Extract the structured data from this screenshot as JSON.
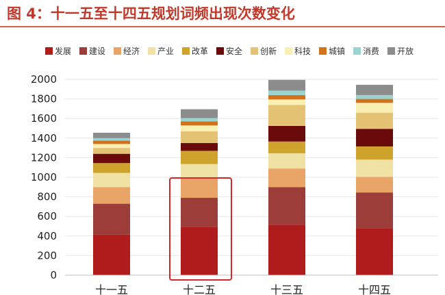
{
  "header": {
    "title": "图 4：十一五至十四五规划词频出现次数变化"
  },
  "chart_data": {
    "type": "bar",
    "stacked": true,
    "categories": [
      "十一五",
      "十二五",
      "十三五",
      "十四五"
    ],
    "series": [
      {
        "name": "发展",
        "color": "#b01c1c",
        "values": [
          415,
          495,
          515,
          480
        ]
      },
      {
        "name": "建设",
        "color": "#9c3d3a",
        "values": [
          315,
          295,
          385,
          365
        ]
      },
      {
        "name": "经济",
        "color": "#e9a467",
        "values": [
          170,
          200,
          190,
          160
        ]
      },
      {
        "name": "产业",
        "color": "#f0e1a4",
        "values": [
          145,
          145,
          155,
          175
        ]
      },
      {
        "name": "改革",
        "color": "#cfa42c",
        "values": [
          100,
          135,
          120,
          135
        ]
      },
      {
        "name": "安全",
        "color": "#6b0a0a",
        "values": [
          95,
          80,
          160,
          180
        ]
      },
      {
        "name": "创新",
        "color": "#e5c374",
        "values": [
          60,
          120,
          215,
          165
        ]
      },
      {
        "name": "科技",
        "color": "#fbf0b4",
        "values": [
          40,
          60,
          55,
          100
        ]
      },
      {
        "name": "城镇",
        "color": "#d2731c",
        "values": [
          35,
          40,
          45,
          40
        ]
      },
      {
        "name": "消费",
        "color": "#9bd3d0",
        "values": [
          25,
          35,
          45,
          40
        ]
      },
      {
        "name": "开放",
        "color": "#8c8c8c",
        "values": [
          55,
          90,
          110,
          105
        ]
      }
    ],
    "yticks": [
      0,
      200,
      400,
      600,
      800,
      1000,
      1200,
      1400,
      1600,
      1800,
      2000
    ],
    "ylim": [
      0,
      2000
    ],
    "grid": true,
    "legend_position": "top",
    "highlight": {
      "category": "十二五",
      "color": "#d6262b"
    }
  }
}
